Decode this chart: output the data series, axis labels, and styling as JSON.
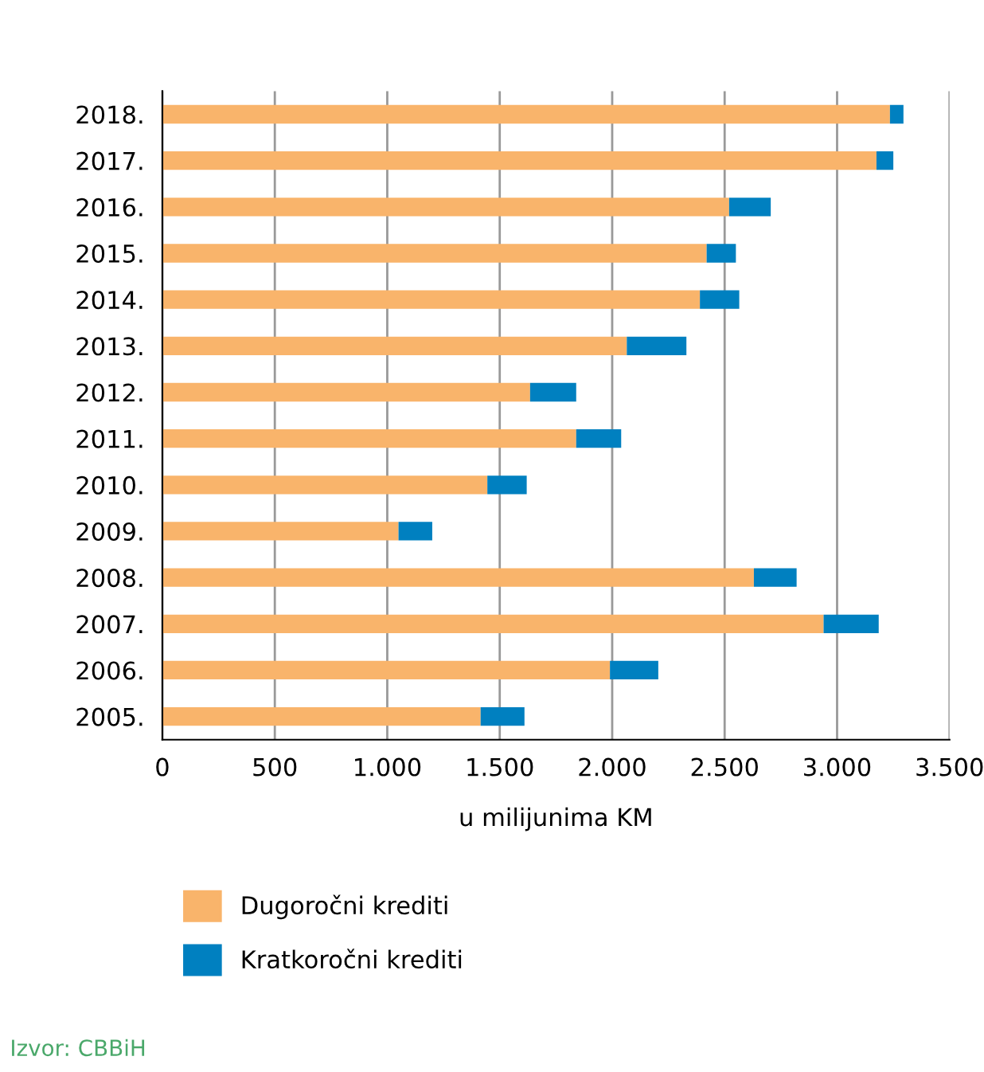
{
  "chart_data": {
    "type": "bar",
    "orientation": "horizontal",
    "stacked": true,
    "categories": [
      "2018.",
      "2017.",
      "2016.",
      "2015.",
      "2014.",
      "2013.",
      "2012.",
      "2011.",
      "2010.",
      "2009.",
      "2008.",
      "2007.",
      "2006.",
      "2005."
    ],
    "series": [
      {
        "name": "Dugoročni krediti",
        "color": "#f9b46b",
        "values": [
          3235,
          3175,
          2520,
          2420,
          2390,
          2065,
          1635,
          1840,
          1445,
          1050,
          2630,
          2940,
          1990,
          1415
        ]
      },
      {
        "name": "Kratkoročni krediti",
        "color": "#0080c0",
        "values": [
          60,
          75,
          185,
          130,
          175,
          265,
          205,
          200,
          175,
          150,
          190,
          245,
          215,
          195
        ]
      }
    ],
    "xlim": [
      0,
      3500
    ],
    "xticks": [
      {
        "value": 0,
        "label": "0"
      },
      {
        "value": 500,
        "label": "500"
      },
      {
        "value": 1000,
        "label": "1.000"
      },
      {
        "value": 1500,
        "label": "1.500"
      },
      {
        "value": 2000,
        "label": "2.000"
      },
      {
        "value": 2500,
        "label": "2.500"
      },
      {
        "value": 3000,
        "label": "3.000"
      },
      {
        "value": 3500,
        "label": "3.500"
      }
    ],
    "xlabel": "u milijunima KM",
    "grid": "x",
    "legend": "bottom",
    "annotations": [
      "Izvor: CBBiH"
    ]
  }
}
